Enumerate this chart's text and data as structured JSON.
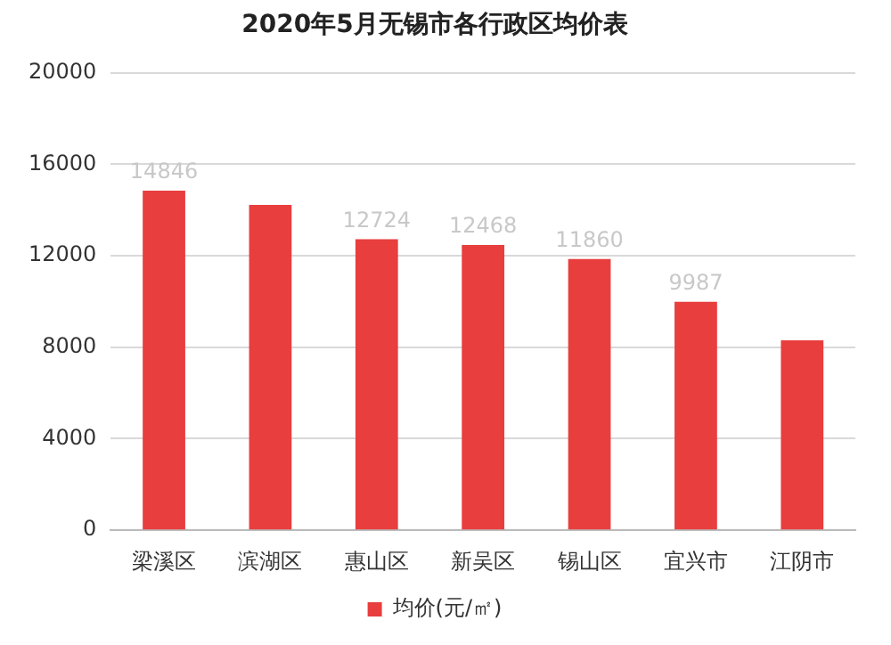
{
  "chart_data": {
    "type": "bar",
    "title": "2020年5月无锡市各行政区均价表",
    "categories": [
      "梁溪区",
      "滨湖区",
      "惠山区",
      "新吴区",
      "锡山区",
      "宜兴市",
      "江阴市"
    ],
    "series": [
      {
        "name": "均价(元/㎡)",
        "color": "#e83e3e",
        "values": [
          14846,
          14220,
          12724,
          12468,
          11860,
          9987,
          8300
        ],
        "value_labels": [
          "14846",
          null,
          "12724",
          "12468",
          "11860",
          "9987",
          null
        ]
      }
    ],
    "ylim": [
      0,
      20000
    ],
    "yticks": [
      0,
      4000,
      8000,
      12000,
      16000,
      20000
    ],
    "grid": "y",
    "legend": "bottom"
  }
}
